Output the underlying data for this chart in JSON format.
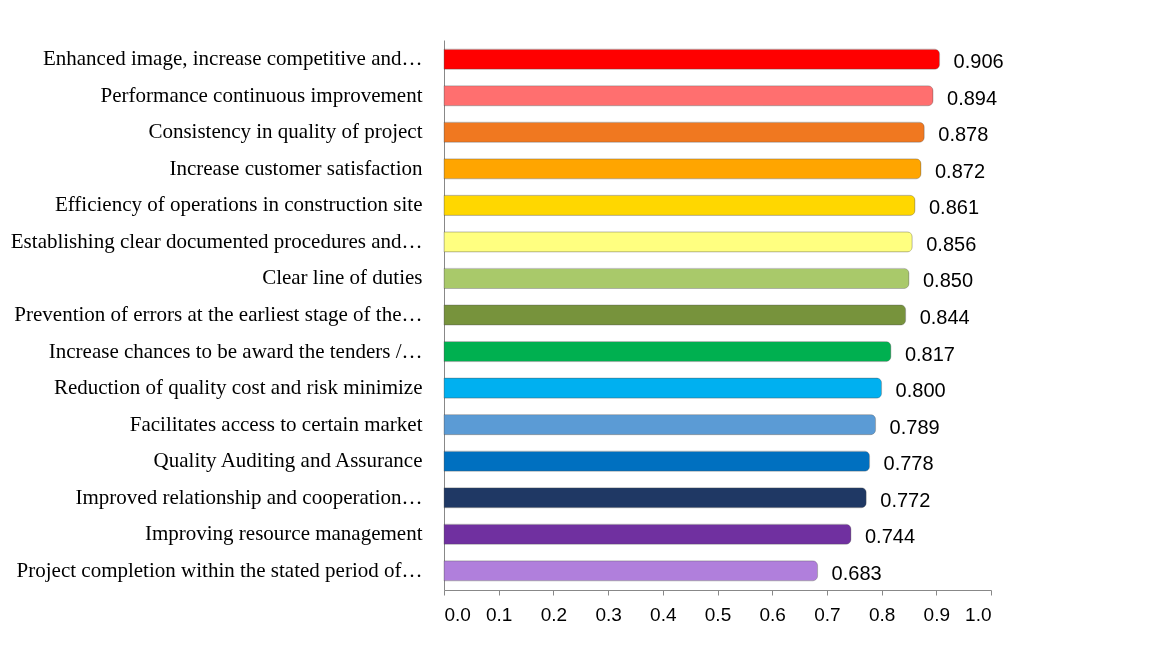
{
  "chart_data": {
    "type": "bar",
    "orientation": "horizontal",
    "categories": [
      "Enhanced image, increase competitive and…",
      "Performance continuous improvement",
      "Consistency in quality of project",
      "Increase customer satisfaction",
      "Efficiency of operations in construction site",
      "Establishing clear documented procedures and…",
      "Clear line of duties",
      "Prevention of errors at the earliest stage of the…",
      "Increase chances to be award the tenders /…",
      "Reduction of quality cost and risk minimize",
      "Facilitates access to certain market",
      "Quality Auditing and Assurance",
      "Improved relationship and cooperation…",
      "Improving resource management",
      "Project completion within the stated period of…"
    ],
    "values": [
      0.906,
      0.894,
      0.878,
      0.872,
      0.861,
      0.856,
      0.85,
      0.844,
      0.817,
      0.8,
      0.789,
      0.778,
      0.772,
      0.744,
      0.683
    ],
    "value_labels": [
      "0.906",
      "0.894",
      "0.878",
      "0.872",
      "0.861",
      "0.856",
      "0.850",
      "0.844",
      "0.817",
      "0.800",
      "0.789",
      "0.778",
      "0.772",
      "0.744",
      "0.683"
    ],
    "colors": [
      "#ff0000",
      "#ff6f6f",
      "#f07820",
      "#ffa500",
      "#ffd700",
      "#ffff80",
      "#a9c96a",
      "#77933c",
      "#00b050",
      "#00b0f0",
      "#5b9bd5",
      "#0070c0",
      "#1f3864",
      "#7030a0",
      "#b07fdc"
    ],
    "xlim": [
      0,
      1.0
    ],
    "xticks": [
      {
        "value": 0,
        "label": "0.0"
      },
      0.1,
      0.2,
      0.3,
      0.4,
      0.5,
      0.6,
      0.7,
      0.8,
      0.9,
      {
        "value": 1,
        "label": "1.0"
      }
    ],
    "grid": false
  }
}
